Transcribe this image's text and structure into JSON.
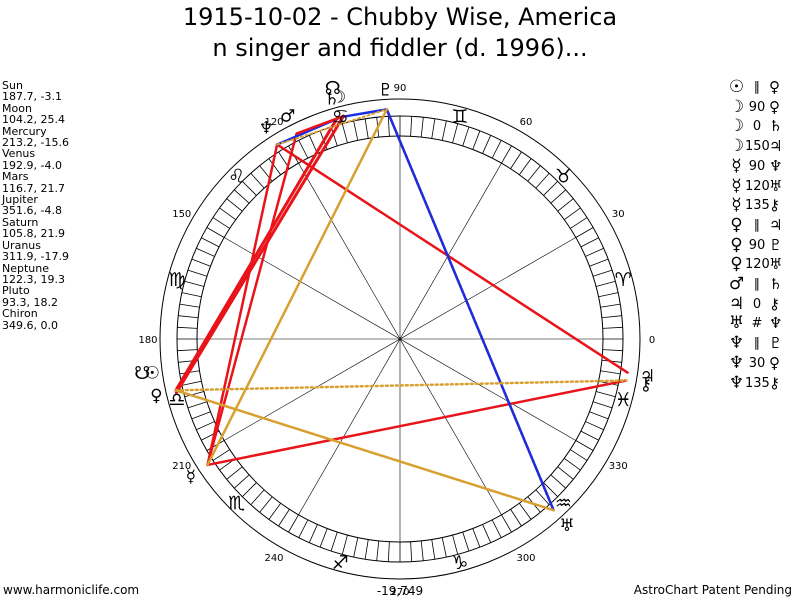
{
  "title": {
    "line1": "1915-10-02 - Chubby Wise, America",
    "line2": "n singer and fiddler (d. 1996)..."
  },
  "colors": {
    "opposition": "#e8141a",
    "trine": "#d8a030",
    "square": "#e8141a",
    "sextile": "#1a2ee0",
    "minor": "#d8a030",
    "wheel": "#000000"
  },
  "planets": [
    {
      "name": "Sun",
      "glyph": "☉",
      "coords": "187.7, -3.1",
      "lon": 187.7
    },
    {
      "name": "Moon",
      "glyph": "☽",
      "coords": "104.2, 25.4",
      "lon": 104.2
    },
    {
      "name": "Mercury",
      "glyph": "☿",
      "coords": "213.2, -15.6",
      "lon": 213.2
    },
    {
      "name": "Venus",
      "glyph": "♀",
      "coords": "192.9, -4.0",
      "lon": 192.9
    },
    {
      "name": "Mars",
      "glyph": "♂",
      "coords": "116.7, 21.7",
      "lon": 116.7
    },
    {
      "name": "Jupiter",
      "glyph": "♃",
      "coords": "351.6, -4.8",
      "lon": 351.6
    },
    {
      "name": "Saturn",
      "glyph": "♄",
      "coords": "105.8, 21.9",
      "lon": 105.8
    },
    {
      "name": "Uranus",
      "glyph": "♅",
      "coords": "311.9, -17.9",
      "lon": 311.9
    },
    {
      "name": "Neptune",
      "glyph": "♆",
      "coords": "122.3, 19.3",
      "lon": 122.3
    },
    {
      "name": "Pluto",
      "glyph": "♇",
      "coords": "93.3, 18.2",
      "lon": 93.3
    },
    {
      "name": "Chiron",
      "glyph": "⚷",
      "coords": "349.6, 0.0",
      "lon": 349.6
    }
  ],
  "aspect_list": [
    {
      "p1": "☉",
      "aspect": "∥",
      "p2": "♀"
    },
    {
      "p1": "☽",
      "aspect": "90",
      "p2": "♀"
    },
    {
      "p1": "☽",
      "aspect": "0",
      "p2": "♄"
    },
    {
      "p1": "☽",
      "aspect": "150",
      "p2": "♃"
    },
    {
      "p1": "☿",
      "aspect": "90",
      "p2": "♆"
    },
    {
      "p1": "☿",
      "aspect": "120",
      "p2": "♅"
    },
    {
      "p1": "☿",
      "aspect": "135",
      "p2": "⚷"
    },
    {
      "p1": "♀",
      "aspect": "∥",
      "p2": "♃"
    },
    {
      "p1": "♀",
      "aspect": "90",
      "p2": "♇"
    },
    {
      "p1": "♀",
      "aspect": "120",
      "p2": "♅"
    },
    {
      "p1": "♂",
      "aspect": "∥",
      "p2": "♄"
    },
    {
      "p1": "♃",
      "aspect": "0",
      "p2": "⚷"
    },
    {
      "p1": "♅",
      "aspect": "#",
      "p2": "♆"
    },
    {
      "p1": "♆",
      "aspect": "∥",
      "p2": "♇"
    },
    {
      "p1": "♆",
      "aspect": "30",
      "p2": "♀"
    },
    {
      "p1": "♆",
      "aspect": "135",
      "p2": "⚷"
    }
  ],
  "chart_data": {
    "type": "astrological-wheel",
    "degree_labels": [
      "0",
      "30",
      "60",
      "90",
      "120",
      "150",
      "180",
      "210",
      "240",
      "270",
      "300",
      "330"
    ],
    "signs": [
      {
        "name": "Aries",
        "glyph": "♈"
      },
      {
        "name": "Taurus",
        "glyph": "♉"
      },
      {
        "name": "Gemini",
        "glyph": "♊"
      },
      {
        "name": "Cancer",
        "glyph": "♋"
      },
      {
        "name": "Leo",
        "glyph": "♌"
      },
      {
        "name": "Virgo",
        "glyph": "♍"
      },
      {
        "name": "Libra",
        "glyph": "♎"
      },
      {
        "name": "Scorpio",
        "glyph": "♏"
      },
      {
        "name": "Sagittarius",
        "glyph": "♐"
      },
      {
        "name": "Capricorn",
        "glyph": "♑"
      },
      {
        "name": "Aquarius",
        "glyph": "♒"
      },
      {
        "name": "Pisces",
        "glyph": "♓"
      }
    ],
    "node_glyphs": [
      {
        "glyph": "☊",
        "lon": 105.0
      },
      {
        "glyph": "☋",
        "lon": 187.5
      }
    ],
    "aspect_lines": [
      {
        "from": 104.2,
        "to": 193.5,
        "color": "#e8141a",
        "style": "solid",
        "width": 3
      },
      {
        "from": 105.8,
        "to": 192.9,
        "color": "#e8141a",
        "style": "solid",
        "width": 3
      },
      {
        "from": 116.7,
        "to": 213.2,
        "color": "#e8141a",
        "style": "solid",
        "width": 2.5
      },
      {
        "from": 122.3,
        "to": 213.2,
        "color": "#e8141a",
        "style": "solid",
        "width": 2.5
      },
      {
        "from": 122.3,
        "to": 351.6,
        "color": "#e8141a",
        "style": "solid",
        "width": 2.5
      },
      {
        "from": 213.2,
        "to": 349.6,
        "color": "#e8141a",
        "style": "solid",
        "width": 2.5
      },
      {
        "from": 93.3,
        "to": 311.9,
        "color": "#e8141a",
        "style": "dotted",
        "width": 2.5
      },
      {
        "from": 122.3,
        "to": 104.2,
        "color": "#1a2ee0",
        "style": "solid",
        "width": 2.5
      },
      {
        "from": 93.3,
        "to": 105.8,
        "color": "#1a2ee0",
        "style": "solid",
        "width": 2.5
      },
      {
        "from": 93.3,
        "to": 311.9,
        "color": "#1a2ee0",
        "style": "solid",
        "width": 2.5
      },
      {
        "from": 104.2,
        "to": 116.7,
        "color": "#e8141a",
        "style": "solid",
        "width": 2.5
      },
      {
        "from": 192.9,
        "to": 311.9,
        "color": "#d8a030",
        "style": "solid",
        "width": 2.5
      },
      {
        "from": 213.2,
        "to": 93.3,
        "color": "#d8a030",
        "style": "solid",
        "width": 2.5
      },
      {
        "from": 122.3,
        "to": 93.3,
        "color": "#d8a030",
        "style": "dotted",
        "width": 2
      },
      {
        "from": 192.9,
        "to": 349.6,
        "color": "#d8a030",
        "style": "dotted",
        "width": 2.5
      }
    ]
  },
  "footer": {
    "left": "www.harmoniclife.com",
    "center": "-19,749",
    "right": "AstroChart Patent Pending"
  }
}
